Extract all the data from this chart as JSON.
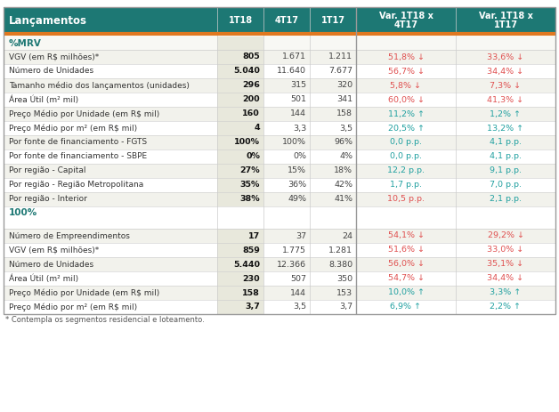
{
  "title": "Lançamentos",
  "col_headers": [
    "1T18",
    "4T17",
    "1T17",
    "Var. 1T18 x\n4T17",
    "Var. 1T18 x\n1T17"
  ],
  "section1_label": "%MRV",
  "section2_label": "100%",
  "rows_mrv": [
    {
      "label": "VGV (em R$ milhões)*",
      "v1": "805",
      "v2": "1.671",
      "v3": "1.211",
      "var1": "51,8% ↓",
      "var2": "33,6% ↓",
      "var1_color": "red",
      "var2_color": "red"
    },
    {
      "label": "Número de Unidades",
      "v1": "5.040",
      "v2": "11.640",
      "v3": "7.677",
      "var1": "56,7% ↓",
      "var2": "34,4% ↓",
      "var1_color": "red",
      "var2_color": "red"
    },
    {
      "label": "Tamanho médio dos lançamentos (unidades)",
      "v1": "296",
      "v2": "315",
      "v3": "320",
      "var1": "5,8% ↓",
      "var2": "7,3% ↓",
      "var1_color": "red",
      "var2_color": "red"
    },
    {
      "label": "Área Útil (m² mil)",
      "v1": "200",
      "v2": "501",
      "v3": "341",
      "var1": "60,0% ↓",
      "var2": "41,3% ↓",
      "var1_color": "red",
      "var2_color": "red"
    },
    {
      "label": "Preço Médio por Unidade (em R$ mil)",
      "v1": "160",
      "v2": "144",
      "v3": "158",
      "var1": "11,2% ↑",
      "var2": "1,2% ↑",
      "var1_color": "teal",
      "var2_color": "teal"
    },
    {
      "label": "Preço Médio por m² (em R$ mil)",
      "v1": "4",
      "v2": "3,3",
      "v3": "3,5",
      "var1": "20,5% ↑",
      "var2": "13,2% ↑",
      "var1_color": "teal",
      "var2_color": "teal"
    },
    {
      "label": "Por fonte de financiamento - FGTS",
      "v1": "100%",
      "v2": "100%",
      "v3": "96%",
      "var1": "0,0 p.p.",
      "var2": "4,1 p.p.",
      "var1_color": "teal",
      "var2_color": "teal"
    },
    {
      "label": "Por fonte de financiamento - SBPE",
      "v1": "0%",
      "v2": "0%",
      "v3": "4%",
      "var1": "0,0 p.p.",
      "var2": "4,1 p.p.",
      "var1_color": "teal",
      "var2_color": "teal"
    },
    {
      "label": "Por região - Capital",
      "v1": "27%",
      "v2": "15%",
      "v3": "18%",
      "var1": "12,2 p.p.",
      "var2": "9,1 p.p.",
      "var1_color": "teal",
      "var2_color": "teal"
    },
    {
      "label": "Por região - Região Metropolitana",
      "v1": "35%",
      "v2": "36%",
      "v3": "42%",
      "var1": "1,7 p.p.",
      "var2": "7,0 p.p.",
      "var1_color": "teal",
      "var2_color": "teal"
    },
    {
      "label": "Por região - Interior",
      "v1": "38%",
      "v2": "49%",
      "v3": "41%",
      "var1": "10,5 p.p.",
      "var2": "2,1 p.p.",
      "var1_color": "red",
      "var2_color": "teal"
    }
  ],
  "rows_100": [
    {
      "label": "Número de Empreendimentos",
      "v1": "17",
      "v2": "37",
      "v3": "24",
      "var1": "54,1% ↓",
      "var2": "29,2% ↓",
      "var1_color": "red",
      "var2_color": "red"
    },
    {
      "label": "VGV (em R$ milhões)*",
      "v1": "859",
      "v2": "1.775",
      "v3": "1.281",
      "var1": "51,6% ↓",
      "var2": "33,0% ↓",
      "var1_color": "red",
      "var2_color": "red"
    },
    {
      "label": "Número de Unidades",
      "v1": "5.440",
      "v2": "12.366",
      "v3": "8.380",
      "var1": "56,0% ↓",
      "var2": "35,1% ↓",
      "var1_color": "red",
      "var2_color": "red"
    },
    {
      "label": "Área Útil (m² mil)",
      "v1": "230",
      "v2": "507",
      "v3": "350",
      "var1": "54,7% ↓",
      "var2": "34,4% ↓",
      "var1_color": "red",
      "var2_color": "red"
    },
    {
      "label": "Preço Médio por Unidade (em R$ mil)",
      "v1": "158",
      "v2": "144",
      "v3": "153",
      "var1": "10,0% ↑",
      "var2": "3,3% ↑",
      "var1_color": "teal",
      "var2_color": "teal"
    },
    {
      "label": "Preço Médio por m² (em R$ mil)",
      "v1": "3,7",
      "v2": "3,5",
      "v3": "3,7",
      "var1": "6,9% ↑",
      "var2": "2,2% ↑",
      "var1_color": "teal",
      "var2_color": "teal"
    }
  ],
  "footnote": "* Contempla os segmentos residencial e loteamento.",
  "header_bg": "#1d7874",
  "header_text": "#ffffff",
  "var_header_bg": "#1d7874",
  "orange_line": "#e07820",
  "section_label_color": "#1d7874",
  "row_bg_even": "#f2f2ec",
  "row_bg_odd": "#ffffff",
  "bold_col_bg": "#e8e8dc",
  "red_color": "#e05050",
  "teal_color": "#20a0a0",
  "border_color": "#cccccc",
  "outer_border": "#999999",
  "fig_w": 6.28,
  "fig_h": 4.63,
  "dpi": 100
}
